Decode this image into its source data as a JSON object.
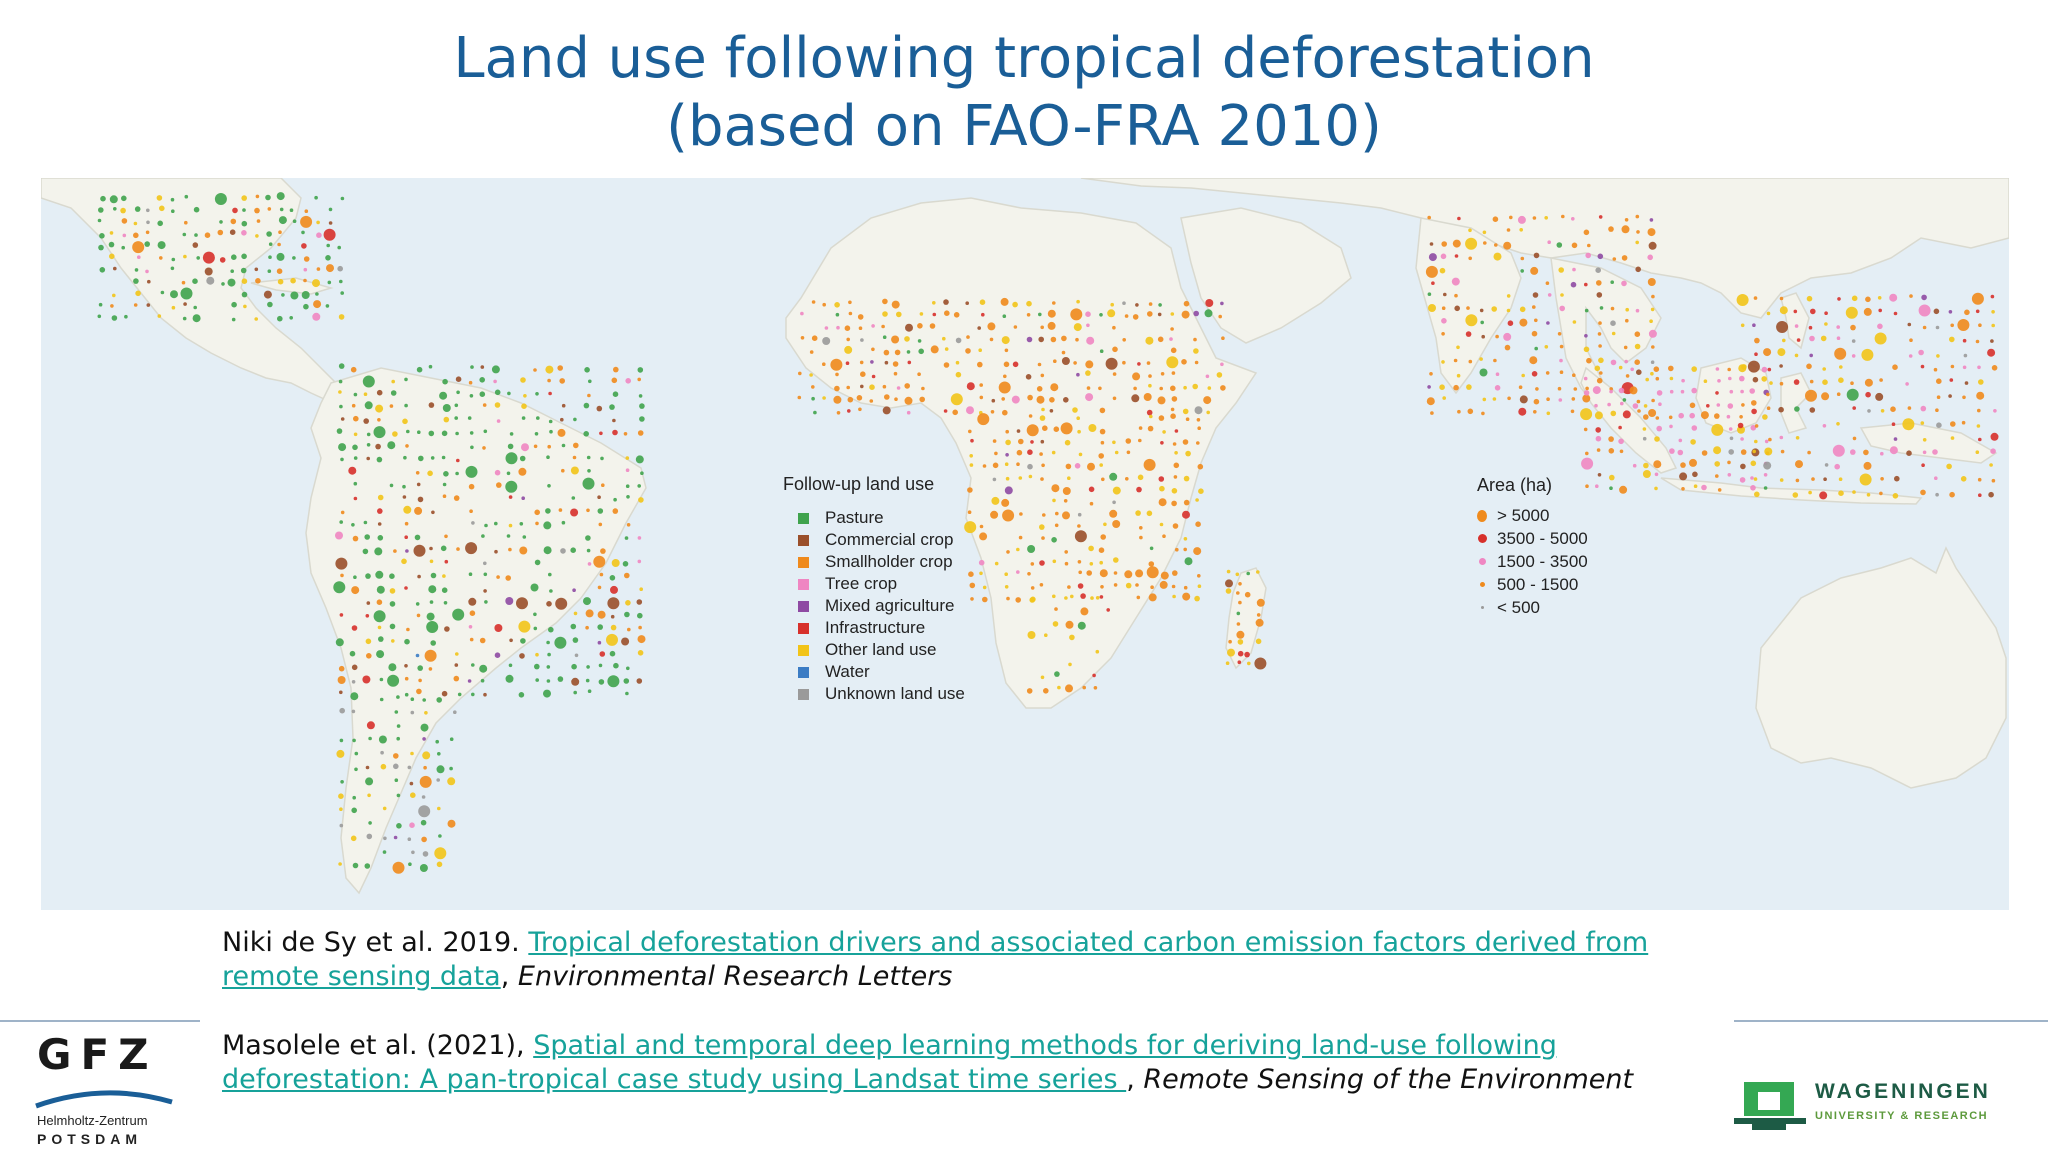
{
  "title": {
    "line1": "Land use following tropical deforestation",
    "line2": "(based on FAO-FRA 2010)"
  },
  "legend_landuse": {
    "title": "Follow-up land use",
    "items": [
      {
        "label": "Pasture",
        "color": "#3fa34d"
      },
      {
        "label": "Commercial crop",
        "color": "#9a4f2a"
      },
      {
        "label": "Smallholder crop",
        "color": "#ef8a1c"
      },
      {
        "label": "Tree crop",
        "color": "#ef86c2"
      },
      {
        "label": "Mixed agriculture",
        "color": "#8e4aa3"
      },
      {
        "label": "Infrastructure",
        "color": "#d7302b"
      },
      {
        "label": "Other land use",
        "color": "#f2c418"
      },
      {
        "label": "Water",
        "color": "#3b7cc4"
      },
      {
        "label": "Unknown land use",
        "color": "#9a9a9a"
      }
    ]
  },
  "legend_area": {
    "title": "Area (ha)",
    "items": [
      {
        "label": "> 5000"
      },
      {
        "label": "3500 - 5000"
      },
      {
        "label": "1500 - 3500"
      },
      {
        "label": "500 - 1500"
      },
      {
        "label": "< 500"
      }
    ]
  },
  "references": {
    "ref1": {
      "authors": "Niki de Sy et al. 2019. ",
      "link_text": "Tropical deforestation drivers and associated carbon emission factors derived from remote sensing data",
      "after_link": ", ",
      "journal": "Environmental Research Letters"
    },
    "ref2": {
      "authors": "Masolele et al. (2021), ",
      "link_text": "Spatial and temporal deep learning methods for deriving land-use following deforestation: A pan-tropical case study using Landsat time series ",
      "after_link": ", ",
      "journal": "Remote Sensing of the Environment"
    }
  },
  "logos": {
    "gfz": {
      "letters": "GFZ",
      "line1": "Helmholtz-Zentrum",
      "line2": "POTSDAM"
    },
    "wur": {
      "name": "WAGENINGEN",
      "sub": "UNIVERSITY & RESEARCH"
    }
  },
  "colors": {
    "title": "#1a5e97",
    "link": "#16a29a",
    "ocean": "#e4eef5",
    "land": "#f3f3ec"
  }
}
